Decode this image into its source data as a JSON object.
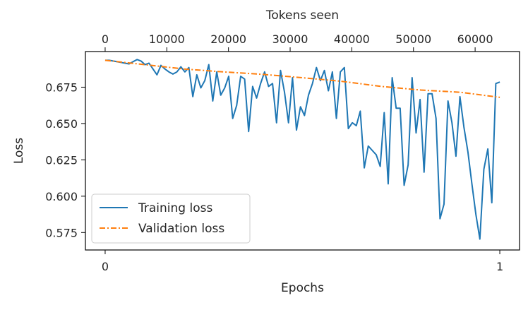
{
  "chart_data": {
    "type": "line",
    "xlabel": "Epochs",
    "ylabel": "Loss",
    "top_xlabel": "Tokens seen",
    "xlim": [
      -0.05,
      1.05
    ],
    "ylim": [
      0.563,
      0.6995
    ],
    "top_xlim": [
      -3200,
      67200
    ],
    "x_ticks": [
      0,
      1
    ],
    "y_ticks": [
      0.575,
      0.6,
      0.625,
      0.65,
      0.675
    ],
    "top_x_ticks": [
      0,
      10000,
      20000,
      30000,
      40000,
      50000,
      60000
    ],
    "grid": false,
    "legend_position": "lower-left",
    "series": [
      {
        "name": "Training loss",
        "color": "#1f77b4",
        "style": "solid",
        "x": [
          0,
          0.0101,
          0.0202,
          0.0303,
          0.0404,
          0.0505,
          0.0606,
          0.0707,
          0.0808,
          0.0909,
          0.101,
          0.1111,
          0.1212,
          0.1313,
          0.1414,
          0.1515,
          0.1616,
          0.1717,
          0.1818,
          0.1919,
          0.202,
          0.2121,
          0.2222,
          0.2323,
          0.2424,
          0.2525,
          0.2626,
          0.2727,
          0.2828,
          0.2929,
          0.303,
          0.3131,
          0.3232,
          0.3333,
          0.3434,
          0.3535,
          0.3636,
          0.3737,
          0.3838,
          0.3939,
          0.404,
          0.4141,
          0.4242,
          0.4343,
          0.4444,
          0.4545,
          0.4646,
          0.4747,
          0.4848,
          0.4949,
          0.5051,
          0.5152,
          0.5253,
          0.5354,
          0.5455,
          0.5556,
          0.5657,
          0.5758,
          0.5859,
          0.596,
          0.6061,
          0.6162,
          0.6263,
          0.6364,
          0.6465,
          0.6566,
          0.6667,
          0.6768,
          0.6869,
          0.697,
          0.7071,
          0.7172,
          0.7273,
          0.7374,
          0.7475,
          0.7576,
          0.7677,
          0.7778,
          0.7879,
          0.798,
          0.8081,
          0.8182,
          0.8283,
          0.8384,
          0.8485,
          0.8586,
          0.8687,
          0.8788,
          0.8889,
          0.899,
          0.9091,
          0.9192,
          0.9293,
          0.9394,
          0.9495,
          0.9596,
          0.9697,
          0.9798,
          0.9899,
          1.0
        ],
        "y": [
          0.6935,
          0.6935,
          0.693,
          0.6925,
          0.692,
          0.6915,
          0.691,
          0.6925,
          0.694,
          0.693,
          0.6905,
          0.6915,
          0.6875,
          0.6835,
          0.69,
          0.6875,
          0.6855,
          0.684,
          0.6855,
          0.689,
          0.6855,
          0.6885,
          0.6685,
          0.6835,
          0.6745,
          0.6795,
          0.6905,
          0.6655,
          0.6855,
          0.6695,
          0.6745,
          0.6825,
          0.6535,
          0.6625,
          0.6825,
          0.6805,
          0.6445,
          0.6755,
          0.6675,
          0.6775,
          0.6855,
          0.6755,
          0.6775,
          0.6505,
          0.6865,
          0.6715,
          0.6505,
          0.6815,
          0.6455,
          0.6615,
          0.6555,
          0.6695,
          0.6775,
          0.6885,
          0.6795,
          0.6865,
          0.6725,
          0.6855,
          0.6535,
          0.6855,
          0.6885,
          0.6465,
          0.6505,
          0.6485,
          0.6585,
          0.6195,
          0.6345,
          0.6315,
          0.6285,
          0.6205,
          0.6575,
          0.6085,
          0.6815,
          0.6605,
          0.6605,
          0.6075,
          0.6215,
          0.6815,
          0.6435,
          0.6665,
          0.6165,
          0.6705,
          0.6705,
          0.6535,
          0.5845,
          0.5945,
          0.6655,
          0.6505,
          0.6275,
          0.6685,
          0.6475,
          0.6305,
          0.6085,
          0.5875,
          0.5705,
          0.6185,
          0.6325,
          0.5955,
          0.6775,
          0.6785
        ]
      },
      {
        "name": "Validation loss",
        "color": "#ff7f0e",
        "style": "dashdot",
        "x": [
          0,
          0.1,
          0.2,
          0.3,
          0.4,
          0.5,
          0.6,
          0.7,
          0.8,
          0.9,
          1.0
        ],
        "y": [
          0.6935,
          0.6905,
          0.6875,
          0.6855,
          0.6838,
          0.6815,
          0.679,
          0.6755,
          0.673,
          0.6715,
          0.668
        ]
      }
    ]
  }
}
